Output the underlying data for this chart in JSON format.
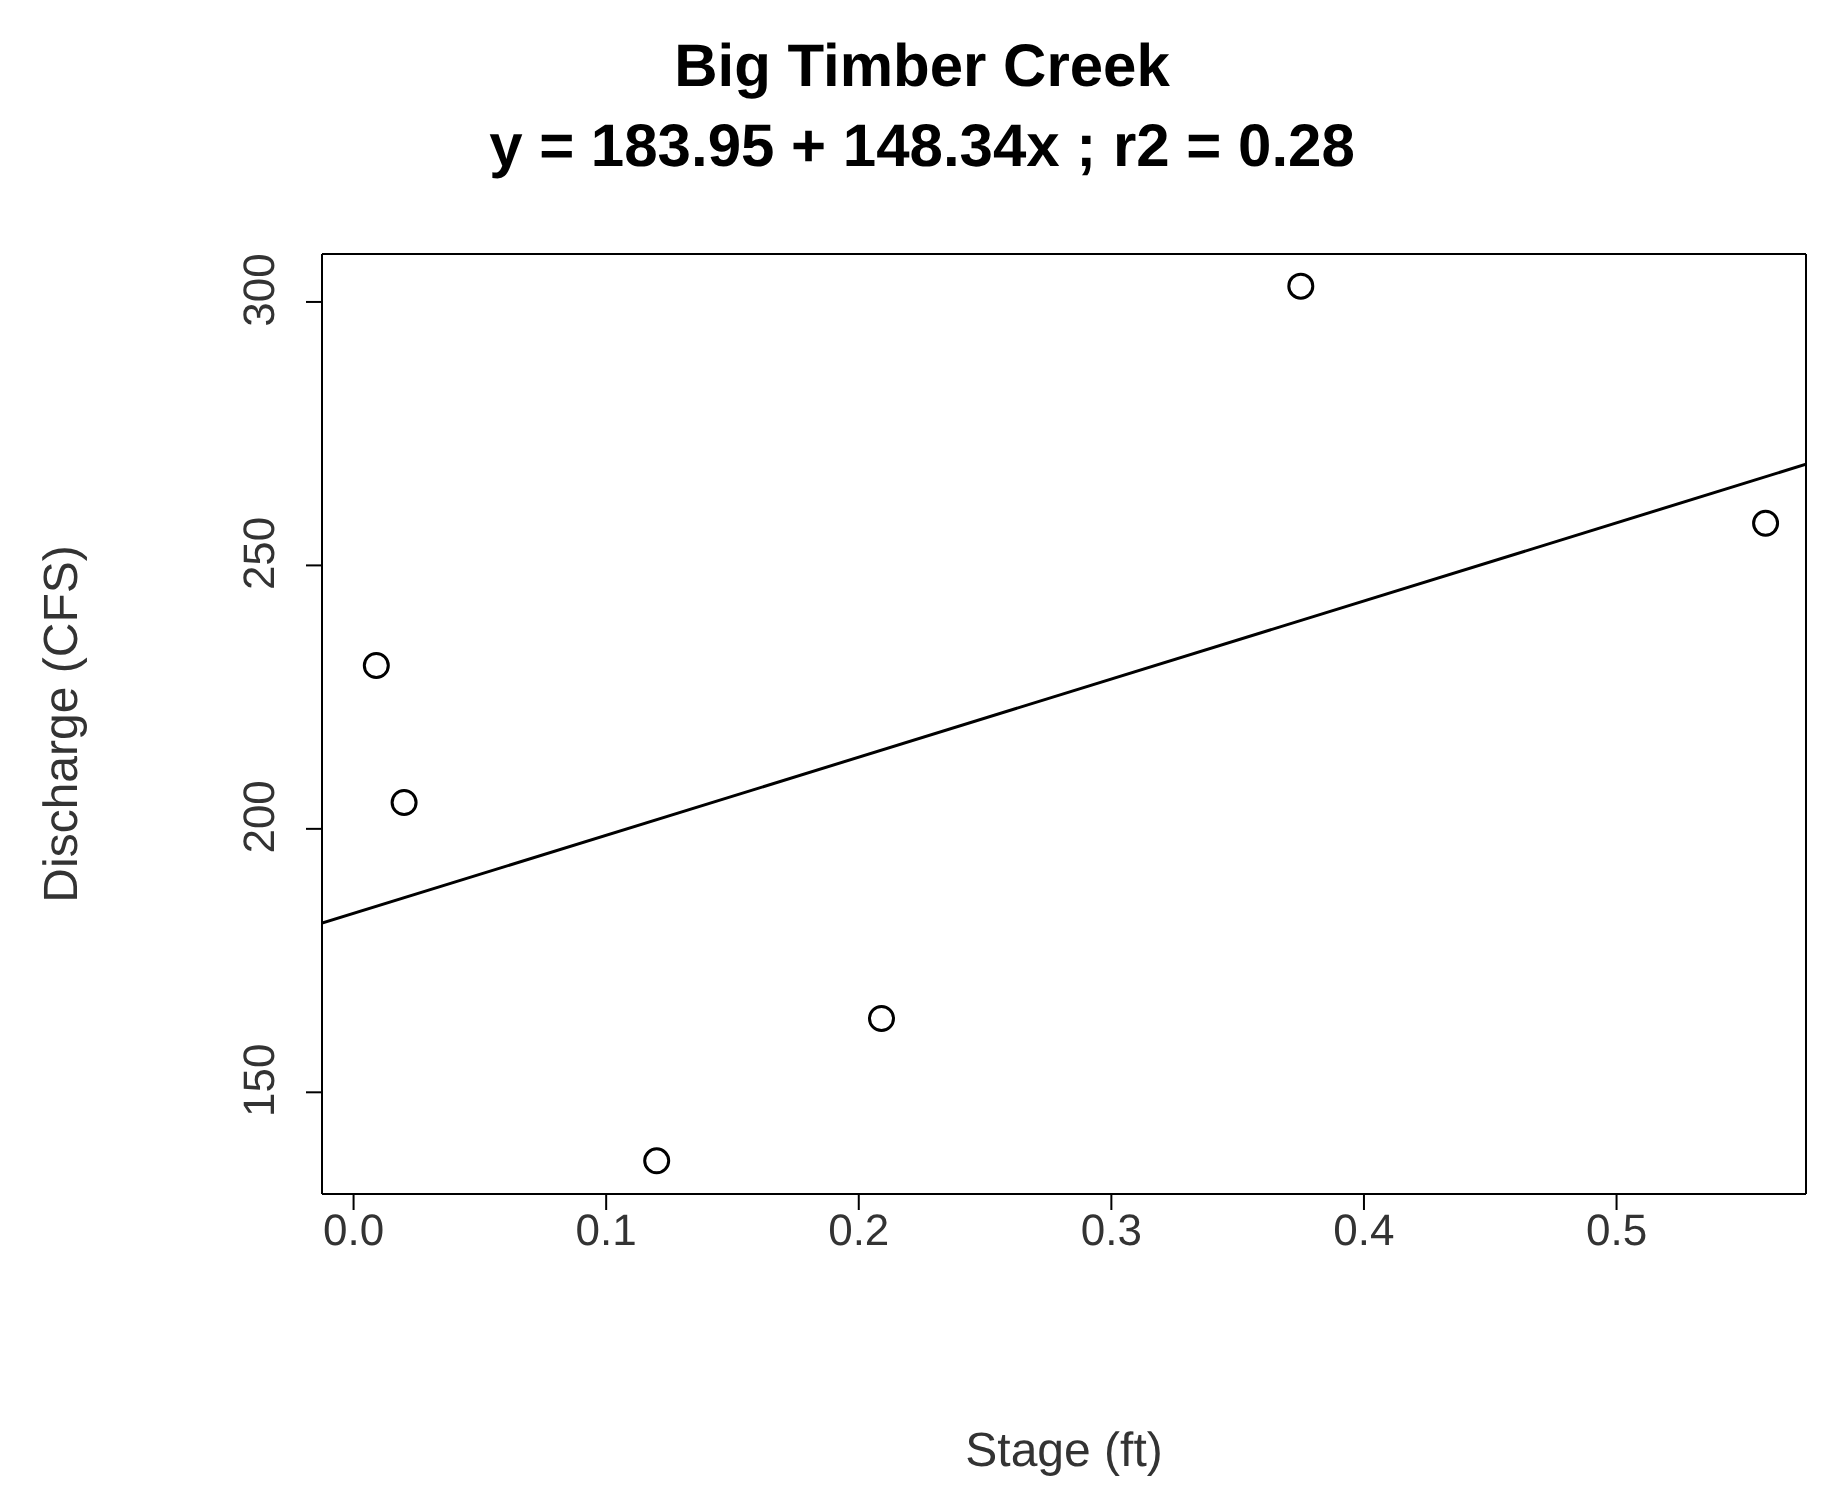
{
  "chart_data": {
    "type": "scatter",
    "title": "Big Timber Creek",
    "subtitle": "y = 183.95 + 148.34x ; r2 = 0.28",
    "xlabel": "Stage (ft)",
    "ylabel": "Discharge (CFS)",
    "series": [
      {
        "color": "#000000",
        "marker": "circle",
        "x": [
          0.009,
          0.02,
          0.12,
          0.209,
          0.375,
          0.559
        ],
        "values": [
          231,
          205,
          137,
          164,
          303,
          258
        ]
      },
      {
        "type": "line",
        "color": "#000000",
        "marker": "none",
        "line_style": "solid",
        "x": [
          -0.0125,
          0.575
        ],
        "values": [
          182.1,
          269.2
        ]
      }
    ],
    "xlim": [
      -0.0125,
      0.575
    ],
    "xticks": [
      {
        "value": 0,
        "label": "0.0"
      },
      0.1,
      0.2,
      0.3,
      0.4,
      0.5
    ],
    "ylim": [
      130.7,
      309.1
    ],
    "yticks": [
      150,
      200,
      250,
      300
    ],
    "grid": false
  }
}
